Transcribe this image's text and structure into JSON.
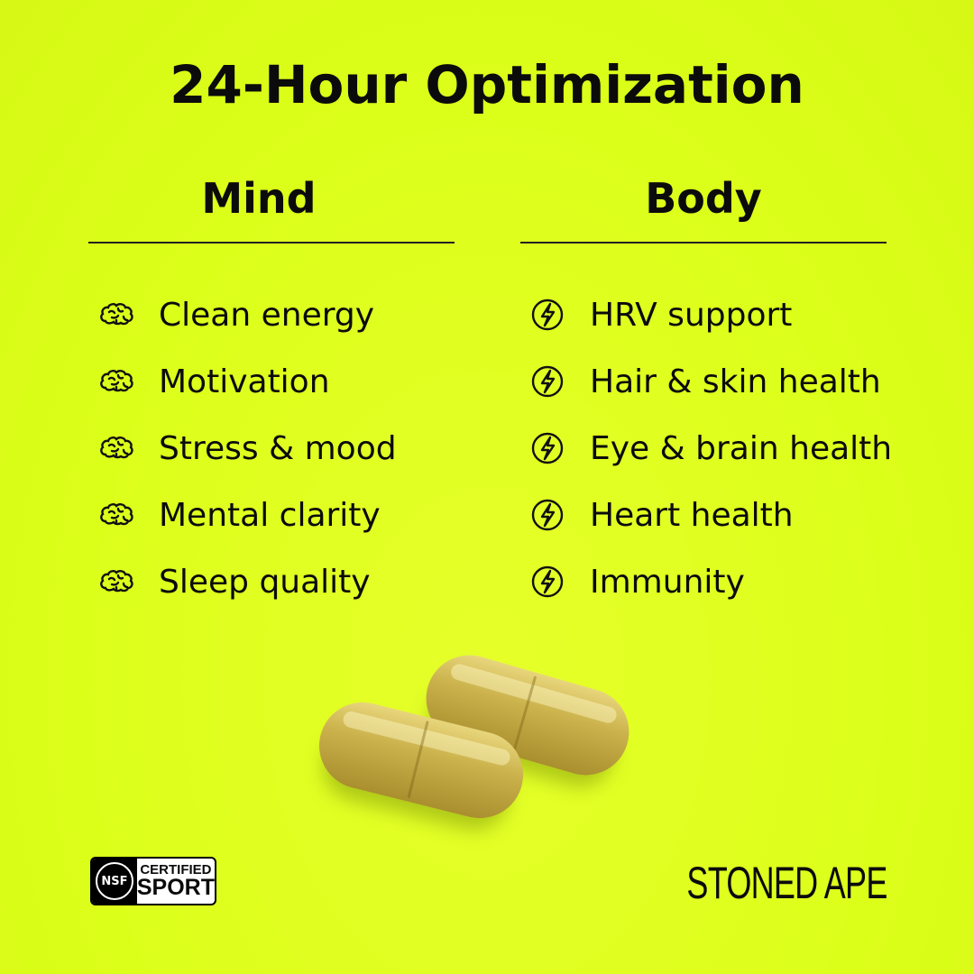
{
  "title": "24-Hour Optimization",
  "mind": {
    "heading": "Mind",
    "icon": "brain-icon",
    "items": [
      "Clean energy",
      "Motivation",
      "Stress & mood",
      "Mental clarity",
      "Sleep quality"
    ]
  },
  "body": {
    "heading": "Body",
    "icon": "lightning-bolt-icon",
    "items": [
      "HRV support",
      "Hair & skin health",
      "Eye & brain health",
      "Heart health",
      "Immunity"
    ]
  },
  "badge": {
    "left": "NSF",
    "top": "CERTIFIED",
    "bottom": "SPORT"
  },
  "brand": "STONED APE",
  "colors": {
    "background": "#dfff1c",
    "text": "#0b0b0b"
  }
}
